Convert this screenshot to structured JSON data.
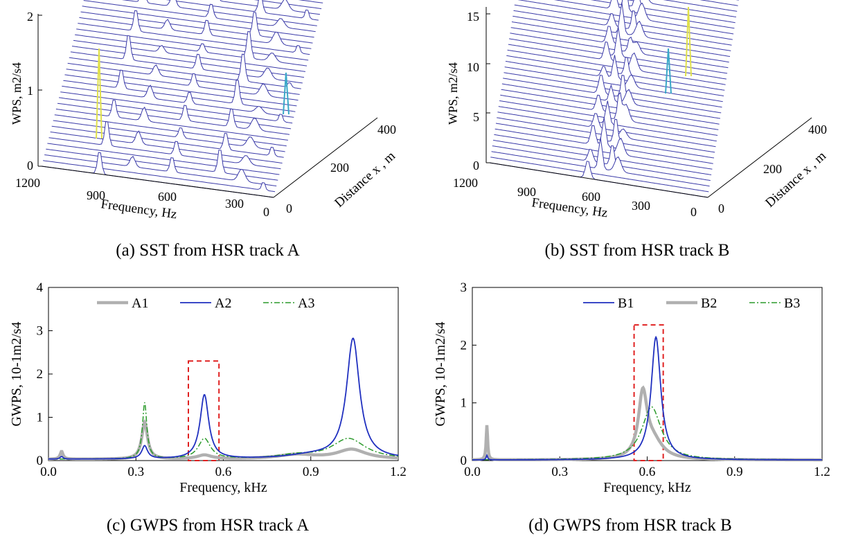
{
  "panels": {
    "a": {
      "caption": "(a) SST from HSR track A",
      "z_label": "WPS, m2/s4",
      "z_ticks": [
        "0",
        "1",
        "2"
      ],
      "freq_label": "Frequency, Hz",
      "freq_ticks": [
        "1200",
        "900",
        "600",
        "300",
        "0"
      ],
      "dist_label": "Distance x , m",
      "dist_ticks": [
        "0",
        "200",
        "400"
      ]
    },
    "b": {
      "caption": "(b) SST from HSR track B",
      "z_label": "WPS, m2/s4",
      "z_ticks": [
        "0",
        "5",
        "10",
        "15"
      ],
      "freq_label": "Frequency, Hz",
      "freq_ticks": [
        "1200",
        "900",
        "600",
        "300",
        "0"
      ],
      "dist_label": "Distance x , m",
      "dist_ticks": [
        "0",
        "200",
        "400"
      ]
    },
    "c": {
      "caption": "(c) GWPS from HSR track A"
    },
    "d": {
      "caption": "(d) GWPS from HSR track B"
    }
  },
  "colors": {
    "surface_line": "#3a3aa8",
    "peak": "#e0e04a",
    "A1": "#b0b0b0",
    "A2": "#1f2fbf",
    "A3": "#2a9a2a",
    "box": "#e02020"
  },
  "chart_data": [
    {
      "id": "c",
      "type": "line",
      "xlabel": "Frequency, kHz",
      "ylabel": "GWPS, 10-1m2/s4",
      "xlim": [
        0,
        1.2
      ],
      "ylim": [
        0,
        4
      ],
      "x_ticks": [
        0.0,
        0.3,
        0.6,
        0.9,
        1.2
      ],
      "y_ticks": [
        0,
        1,
        2,
        3,
        4
      ],
      "legend": "top-left",
      "highlight_box": {
        "x": [
          0.48,
          0.585
        ],
        "y": [
          0,
          2.3
        ]
      },
      "series": [
        {
          "name": "A1",
          "style": "thick-gray",
          "peaks": [
            [
              0.045,
              0.18,
              0.006
            ],
            [
              0.33,
              0.85,
              0.012
            ],
            [
              0.535,
              0.09,
              0.03
            ],
            [
              0.85,
              0.1,
              0.08
            ],
            [
              1.04,
              0.22,
              0.06
            ]
          ],
          "base": 0.03
        },
        {
          "name": "A2",
          "style": "solid-blue",
          "peaks": [
            [
              0.045,
              0.06,
              0.006
            ],
            [
              0.33,
              0.3,
              0.012
            ],
            [
              0.535,
              1.48,
              0.018
            ],
            [
              1.045,
              2.77,
              0.027
            ],
            [
              0.9,
              0.08,
              0.1
            ]
          ],
          "base": 0.03
        },
        {
          "name": "A3",
          "style": "dashdot-green",
          "peaks": [
            [
              0.33,
              1.3,
              0.009
            ],
            [
              0.535,
              0.47,
              0.025
            ],
            [
              1.03,
              0.47,
              0.07
            ],
            [
              0.85,
              0.08,
              0.08
            ]
          ],
          "base": 0.03
        }
      ]
    },
    {
      "id": "d",
      "type": "line",
      "xlabel": "Frequency, kHz",
      "ylabel": "GWPS, 10-1m2/s4",
      "xlim": [
        0,
        1.2
      ],
      "ylim": [
        0,
        3
      ],
      "x_ticks": [
        0.0,
        0.3,
        0.6,
        0.9,
        1.2
      ],
      "y_ticks": [
        0,
        1,
        2,
        3
      ],
      "legend": "top-right",
      "highlight_box": {
        "x": [
          0.555,
          0.655
        ],
        "y": [
          0,
          2.35
        ]
      },
      "series": [
        {
          "name": "B1",
          "style": "solid-blue",
          "peaks": [
            [
              0.05,
              0.08,
              0.003
            ],
            [
              0.63,
              2.13,
              0.02
            ]
          ],
          "base": 0.01
        },
        {
          "name": "B2",
          "style": "thick-gray",
          "peaks": [
            [
              0.05,
              0.6,
              0.003
            ],
            [
              0.585,
              1.08,
              0.018
            ],
            [
              0.62,
              0.3,
              0.04
            ]
          ],
          "base": 0.01
        },
        {
          "name": "B3",
          "style": "dashdot-green",
          "peaks": [
            [
              0.615,
              0.92,
              0.04
            ]
          ],
          "base": 0.01
        }
      ]
    }
  ]
}
